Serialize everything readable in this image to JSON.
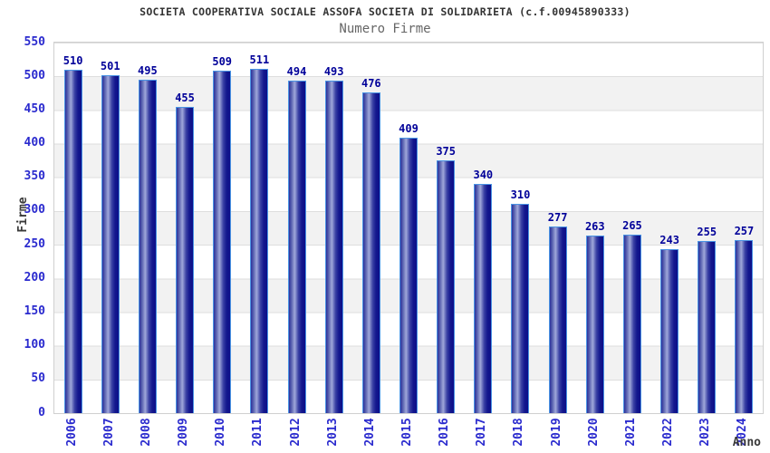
{
  "title": "SOCIETA COOPERATIVA SOCIALE ASSOFA SOCIETA DI SOLIDARIETA (c.f.00945890333)",
  "subtitle": "Numero Firme",
  "chart_data": {
    "type": "bar",
    "title": "Numero Firme",
    "categories": [
      "2006",
      "2007",
      "2008",
      "2009",
      "2010",
      "2011",
      "2012",
      "2013",
      "2014",
      "2015",
      "2016",
      "2017",
      "2018",
      "2019",
      "2020",
      "2021",
      "2022",
      "2023",
      "2024"
    ],
    "values": [
      510,
      501,
      495,
      455,
      509,
      511,
      494,
      493,
      476,
      409,
      375,
      340,
      310,
      277,
      263,
      265,
      243,
      255,
      257
    ],
    "xlabel": "Anno",
    "ylabel": "Firme",
    "ylim": [
      0,
      550
    ],
    "yticks": [
      0,
      50,
      100,
      150,
      200,
      250,
      300,
      350,
      400,
      450,
      500,
      550
    ],
    "grid": true,
    "legend": false,
    "value_labels_shown": true,
    "x_tick_rotation_deg": 90
  },
  "colors": {
    "title": "#333333",
    "subtitle": "#666666",
    "tick_label": "#2a2ace",
    "value_label": "#000099",
    "axis_title": "#3a3a3a",
    "bar_border": "#4a94e4",
    "bar_dark": "#14188e",
    "bar_light": "#9fa7da",
    "band_gray": "#f2f2f2",
    "gridline": "#dedede",
    "plot_border": "#d0d0d0"
  }
}
